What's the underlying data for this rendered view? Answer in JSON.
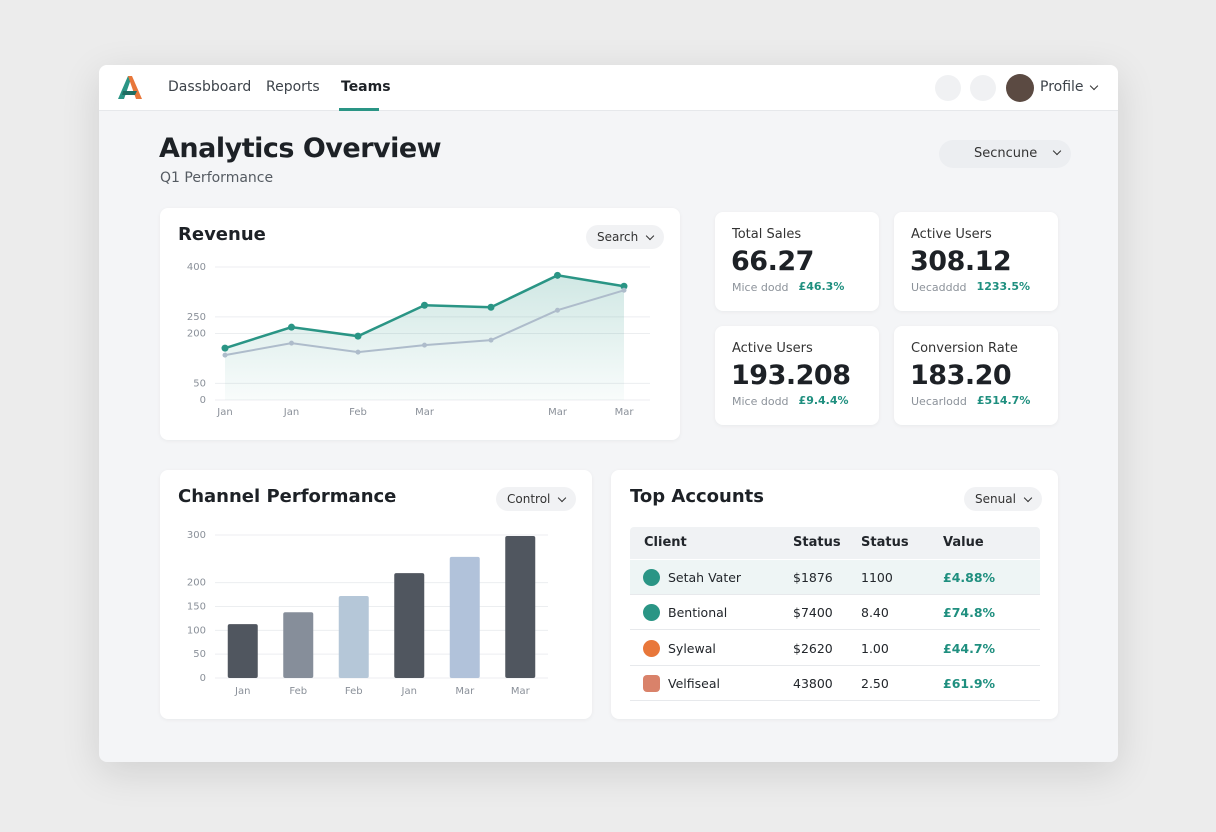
{
  "nav": {
    "items": [
      "Dassbboard",
      "Reports",
      "Teams"
    ],
    "profile": "Profile"
  },
  "header": {
    "title": "Analytics Overview",
    "subtitle": "Q1 Performance",
    "search": "Secncune"
  },
  "revenue": {
    "title": "Revenue",
    "dropdown": "Search",
    "chart_data": {
      "type": "line",
      "categories": [
        "Jan",
        "Jan",
        "Feb",
        "Mar",
        null,
        "Mar",
        "Mar"
      ],
      "series": [
        {
          "color": "#2a9585",
          "values": [
            156,
            219,
            192,
            285,
            279,
            375,
            342
          ]
        },
        {
          "color": "#aebccb",
          "values": [
            135,
            171,
            144,
            165,
            180,
            270,
            330
          ]
        }
      ],
      "ylim": [
        0,
        400
      ],
      "yticks": [
        400,
        250,
        200,
        50,
        0
      ],
      "grid": true
    }
  },
  "stats": [
    {
      "label": "Total Sales",
      "value": "66.27",
      "sub": "Mice dodd",
      "change": "£46.3%"
    },
    {
      "label": "Active Users",
      "value": "308.12",
      "sub": "Uecadddd",
      "change": "1233.5%"
    },
    {
      "label": "Active Users",
      "value": "193.208",
      "sub": "Mice dodd",
      "change": "£9.4.4%"
    },
    {
      "label": "Conversion Rate",
      "value": "183.20",
      "sub": "Uecarlodd",
      "change": "£514.7%"
    }
  ],
  "channel": {
    "title": "Channel Performance",
    "dropdown": "Control",
    "chart_data": {
      "type": "bar",
      "categories": [
        "Jan",
        "Feb",
        "Feb",
        "Jan",
        "Mar",
        "Mar"
      ],
      "values": [
        113,
        138,
        172,
        220,
        254,
        298
      ],
      "colors": [
        "#50565f",
        "#868e9a",
        "#b5c7d8",
        "#50565f",
        "#b1c2da",
        "#50565f"
      ],
      "ylim": [
        0,
        300
      ],
      "yticks": [
        300,
        200,
        150,
        100,
        50,
        0
      ],
      "grid": true
    }
  },
  "accounts": {
    "title": "Top Accounts",
    "dropdown": "Senual",
    "columns": [
      "Client",
      "Status",
      "Status",
      "Value"
    ],
    "rows": [
      [
        "Setah Vater",
        "$1876",
        "1100",
        "£4.88%"
      ],
      [
        "Bentional",
        "$7400",
        "8.40",
        "£74.8%"
      ],
      [
        "Sylewal",
        "$2620",
        "1.00",
        "£44.7%"
      ],
      [
        "Velfiseal",
        "43800",
        "2.50",
        "£61.9%"
      ]
    ]
  }
}
